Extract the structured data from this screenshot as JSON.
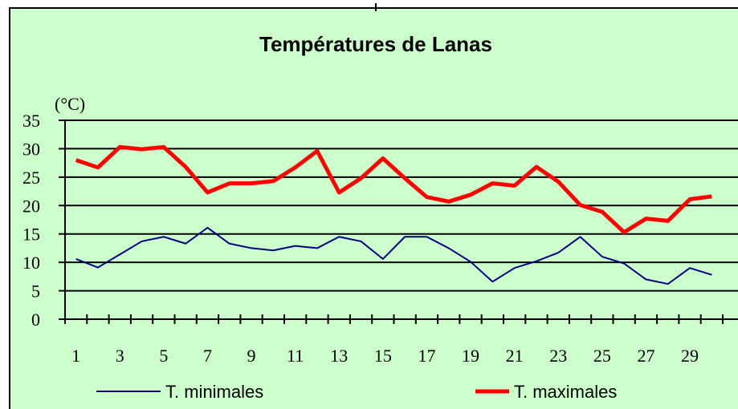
{
  "chart_data": {
    "type": "line",
    "title": "Températures de Lanas",
    "y_label": "(°C)",
    "categories": [
      "1",
      null,
      "3",
      null,
      "5",
      null,
      "7",
      null,
      "9",
      null,
      "11",
      null,
      "13",
      null,
      "15",
      null,
      "17",
      null,
      "19",
      null,
      "21",
      null,
      "23",
      null,
      "25",
      null,
      "27",
      null,
      "29",
      null
    ],
    "series": [
      {
        "name": "T. minimales",
        "color": "#000080",
        "values": [
          10.6,
          9.1,
          11.4,
          13.7,
          14.5,
          13.3,
          16.1,
          13.3,
          12.5,
          12.1,
          12.9,
          12.5,
          14.5,
          13.7,
          10.6,
          14.5,
          14.5,
          12.5,
          10.1,
          6.6,
          9.0,
          10.2,
          11.7,
          14.5,
          11.0,
          9.8,
          7.0,
          6.2,
          9.0,
          7.8
        ]
      },
      {
        "name": "T. maximales",
        "color": "#ff0000",
        "values": [
          28.0,
          26.7,
          30.3,
          29.9,
          30.3,
          26.8,
          22.3,
          23.9,
          23.9,
          24.3,
          26.7,
          29.6,
          22.3,
          24.8,
          28.3,
          24.8,
          21.5,
          20.7,
          21.9,
          23.9,
          23.5,
          26.8,
          24.2,
          20.1,
          18.9,
          15.3,
          17.7,
          17.3,
          21.1,
          21.6
        ]
      }
    ],
    "ylim": [
      0,
      35
    ],
    "yticks": [
      0,
      5,
      10,
      15,
      20,
      25,
      30,
      35
    ],
    "grid": true,
    "legend": "bottom"
  }
}
